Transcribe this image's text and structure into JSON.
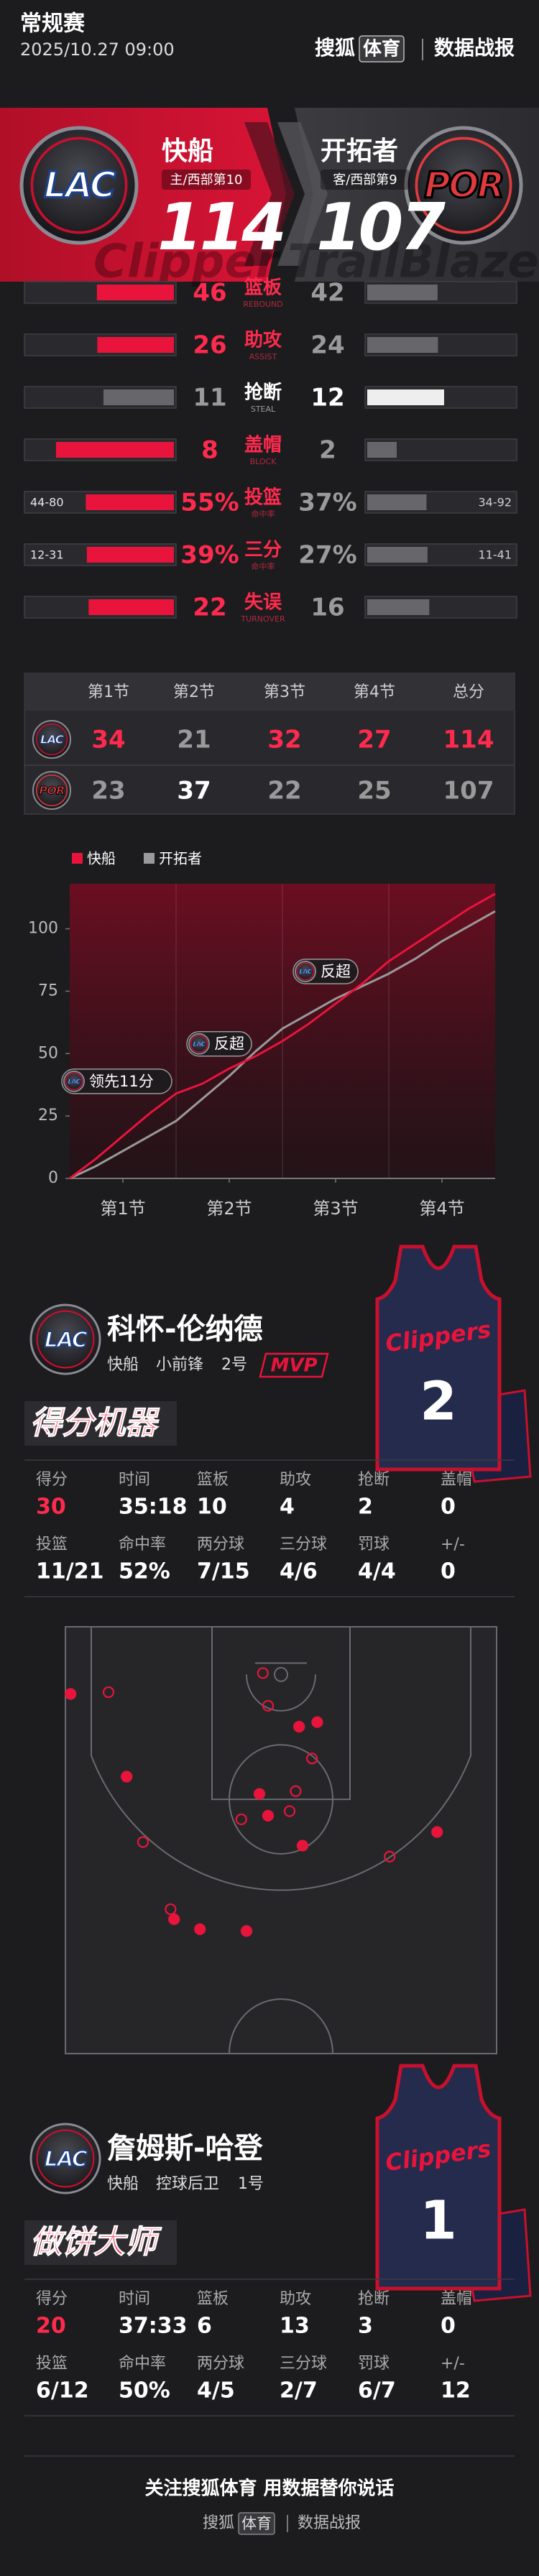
{
  "header": {
    "league": "常规赛",
    "datetime": "2025/10.27 09:00",
    "brand": "搜狐",
    "brand_tag": "体育",
    "report": "数据战报"
  },
  "teams": [
    {
      "abbr": "LAC",
      "name": "快船",
      "seed": "主/西部第10",
      "score": 114,
      "watermark": "Clipper"
    },
    {
      "abbr": "POR",
      "name": "开拓者",
      "seed": "客/西部第9",
      "score": 107,
      "watermark": "TrailBlazer"
    }
  ],
  "comparison": [
    {
      "label": "篮板",
      "sub": "REBOUND",
      "values": [
        46,
        42
      ]
    },
    {
      "label": "助攻",
      "sub": "ASSIST",
      "values": [
        26,
        24
      ]
    },
    {
      "label": "抢断",
      "sub": "STEAL",
      "values": [
        11,
        12
      ]
    },
    {
      "label": "盖帽",
      "sub": "BLOCK",
      "values": [
        8,
        2
      ]
    },
    {
      "label": "投篮",
      "sub": "命中率",
      "values": [
        55,
        37
      ],
      "value_labels": [
        "55%",
        "37%"
      ],
      "made": [
        "44-80",
        "34-92"
      ]
    },
    {
      "label": "三分",
      "sub": "命中率",
      "values": [
        39,
        27
      ],
      "value_labels": [
        "39%",
        "27%"
      ],
      "made": [
        "12-31",
        "11-41"
      ]
    },
    {
      "label": "失误",
      "sub": "TURNOVER",
      "values": [
        22,
        16
      ]
    }
  ],
  "quarters": {
    "headers": [
      "第1节",
      "第2节",
      "第3节",
      "第4节",
      "总分"
    ],
    "rows": [
      [
        34,
        21,
        32,
        27,
        114
      ],
      [
        23,
        37,
        22,
        25,
        107
      ]
    ]
  },
  "chart_data": {
    "type": "line",
    "x": [
      0,
      3,
      6,
      9,
      12,
      15,
      18,
      21,
      24,
      27,
      30,
      33,
      36,
      39,
      42,
      45,
      48
    ],
    "xlim": [
      0,
      48
    ],
    "xticks": [
      {
        "value": 6,
        "label": "第1节"
      },
      {
        "value": 18,
        "label": "第2节"
      },
      {
        "value": 30,
        "label": "第3节"
      },
      {
        "value": 42,
        "label": "第4节"
      }
    ],
    "ylim": [
      0,
      118
    ],
    "yticks": [
      0,
      25,
      50,
      75,
      100
    ],
    "series": [
      {
        "name": "快船",
        "color": "#e8143c",
        "values": [
          0,
          8,
          17,
          26,
          34,
          38,
          44,
          49,
          55,
          62,
          70,
          78,
          87,
          94,
          101,
          108,
          114
        ]
      },
      {
        "name": "开拓者",
        "color": "#9a9a9a",
        "values": [
          0,
          5,
          11,
          17,
          23,
          32,
          41,
          51,
          60,
          66,
          72,
          77,
          82,
          88,
          95,
          101,
          107
        ]
      }
    ],
    "annotations": [
      "领先11分",
      "反超",
      "反超"
    ]
  },
  "players": [
    {
      "name": "科怀-伦纳德",
      "team": "快船",
      "position": "小前锋",
      "number": "2号",
      "badge": "MVP",
      "title": "得分机器",
      "jersey_text": "Clippers",
      "jersey_number": 2,
      "stats": [
        {
          "label": "得分",
          "value": 30
        },
        {
          "label": "时间",
          "value": "35:18"
        },
        {
          "label": "篮板",
          "value": 10
        },
        {
          "label": "助攻",
          "value": 4
        },
        {
          "label": "抢断",
          "value": 2
        },
        {
          "label": "盖帽",
          "value": 0
        },
        {
          "label": "投篮",
          "value": "11/21"
        },
        {
          "label": "命中率",
          "value": "52%"
        },
        {
          "label": "两分球",
          "value": "7/15"
        },
        {
          "label": "三分球",
          "value": "4/6"
        },
        {
          "label": "罚球",
          "value": "4/4"
        },
        {
          "label": "+/-",
          "value": 0
        }
      ]
    },
    {
      "name": "詹姆斯-哈登",
      "team": "快船",
      "position": "控球后卫",
      "number": "1号",
      "title": "做饼大师",
      "jersey_text": "Clippers",
      "jersey_number": 1,
      "stats": [
        {
          "label": "得分",
          "value": 20
        },
        {
          "label": "时间",
          "value": "37:33"
        },
        {
          "label": "篮板",
          "value": 6
        },
        {
          "label": "助攻",
          "value": 13
        },
        {
          "label": "抢断",
          "value": 3
        },
        {
          "label": "盖帽",
          "value": 0
        },
        {
          "label": "投篮",
          "value": "6/12"
        },
        {
          "label": "命中率",
          "value": "50%"
        },
        {
          "label": "两分球",
          "value": "4/5"
        },
        {
          "label": "三分球",
          "value": "2/7"
        },
        {
          "label": "罚球",
          "value": "6/7"
        },
        {
          "label": "+/-",
          "value": 12
        }
      ]
    }
  ],
  "shot_chart": {
    "xlim": [
      0,
      50
    ],
    "ylim": [
      0,
      47
    ],
    "x": [
      0.6,
      7.1,
      27.1,
      29.2,
      22.5,
      23.5,
      27.5,
      43.1,
      12.6,
      15.6,
      21.0,
      5.0,
      22.9,
      23.5,
      9.0,
      20.4,
      26.7,
      26.0,
      37.6,
      12.2,
      28.6
    ],
    "y": [
      7.4,
      16.5,
      11.0,
      10.5,
      18.4,
      20.8,
      24.1,
      22.6,
      32.2,
      33.3,
      33.5,
      7.2,
      5.1,
      8.7,
      23.7,
      21.2,
      18.1,
      20.3,
      25.3,
      31.1,
      14.5
    ],
    "made": [
      true,
      true,
      true,
      true,
      true,
      true,
      true,
      true,
      true,
      true,
      true,
      false,
      false,
      false,
      false,
      false,
      false,
      false,
      false,
      false,
      false
    ]
  },
  "footer": {
    "slogan": "关注搜狐体育 用数据替你说话",
    "brand": "搜狐",
    "brand_tag": "体育",
    "report": "数据战报"
  }
}
